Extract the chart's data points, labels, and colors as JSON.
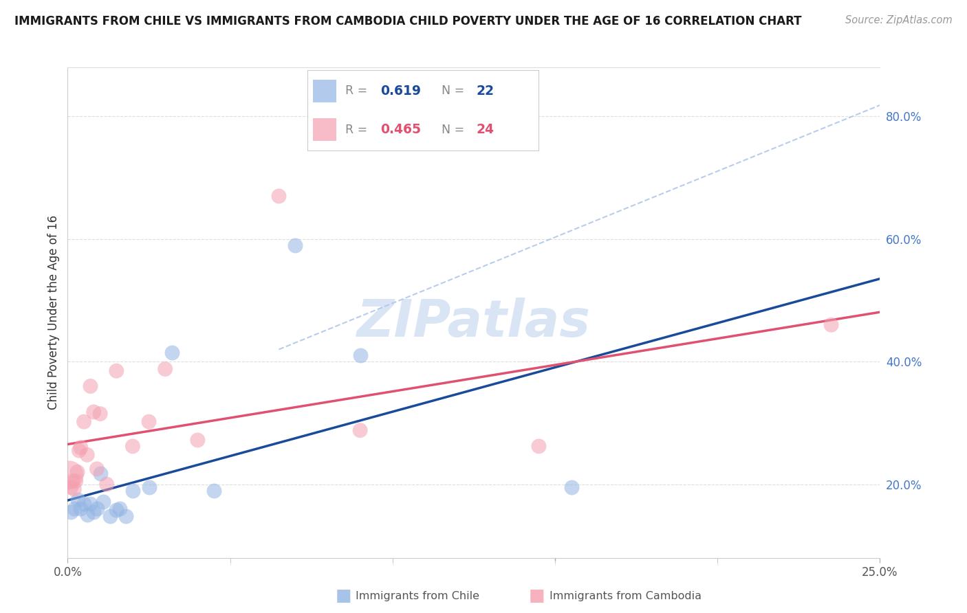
{
  "title": "IMMIGRANTS FROM CHILE VS IMMIGRANTS FROM CAMBODIA CHILD POVERTY UNDER THE AGE OF 16 CORRELATION CHART",
  "source": "Source: ZipAtlas.com",
  "ylabel": "Child Poverty Under the Age of 16",
  "xlim": [
    0.0,
    0.25
  ],
  "ylim": [
    0.08,
    0.88
  ],
  "yticks": [
    0.2,
    0.4,
    0.6,
    0.8
  ],
  "ytick_labels": [
    "20.0%",
    "40.0%",
    "60.0%",
    "80.0%"
  ],
  "chile_color": "#92b4e3",
  "cambodia_color": "#f4a0b0",
  "chile_line_color": "#1a4a9a",
  "cambodia_line_color": "#e05070",
  "dashed_line_color": "#b0c8e8",
  "watermark": "ZIPatlas",
  "chile_x": [
    0.001,
    0.002,
    0.003,
    0.004,
    0.005,
    0.006,
    0.007,
    0.008,
    0.009,
    0.01,
    0.011,
    0.013,
    0.015,
    0.016,
    0.018,
    0.02,
    0.025,
    0.032,
    0.045,
    0.07,
    0.09,
    0.155
  ],
  "chile_y": [
    0.155,
    0.16,
    0.175,
    0.16,
    0.168,
    0.15,
    0.168,
    0.155,
    0.16,
    0.218,
    0.172,
    0.148,
    0.158,
    0.16,
    0.148,
    0.19,
    0.195,
    0.415,
    0.19,
    0.59,
    0.41,
    0.195
  ],
  "cambodia_x": [
    0.0005,
    0.001,
    0.0015,
    0.002,
    0.0025,
    0.003,
    0.0035,
    0.004,
    0.005,
    0.006,
    0.007,
    0.008,
    0.009,
    0.01,
    0.012,
    0.015,
    0.02,
    0.025,
    0.03,
    0.04,
    0.065,
    0.09,
    0.145,
    0.235
  ],
  "cambodia_y": [
    0.215,
    0.195,
    0.205,
    0.192,
    0.205,
    0.22,
    0.255,
    0.26,
    0.302,
    0.248,
    0.36,
    0.318,
    0.225,
    0.315,
    0.2,
    0.385,
    0.262,
    0.302,
    0.388,
    0.272,
    0.67,
    0.288,
    0.262,
    0.46
  ],
  "cambodia_size_large": 900,
  "marker_size": 250
}
